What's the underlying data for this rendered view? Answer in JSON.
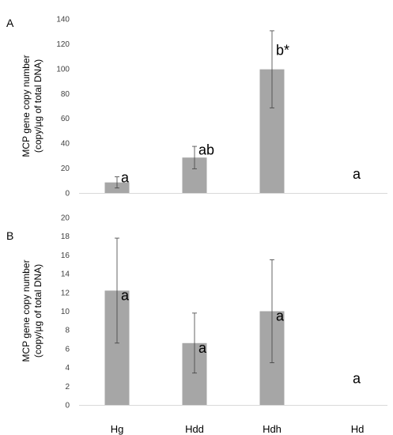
{
  "chart_data": [
    {
      "type": "bar",
      "panel_label": "A",
      "categories": [
        "Hg",
        "Hdd",
        "Hdh",
        "Hd"
      ],
      "values": [
        8.5,
        28.5,
        99.5,
        0
      ],
      "error": [
        4.5,
        9,
        31,
        0
      ],
      "significance": [
        "a",
        "ab",
        "b*",
        "a"
      ],
      "ylabel_lines": [
        "MCP gene copy number",
        "(copy/µg of total DNA)"
      ],
      "ylim": [
        0,
        140
      ],
      "yticks": [
        0,
        20,
        40,
        60,
        80,
        100,
        120,
        140
      ],
      "bar_color": "#a6a6a6",
      "grid": false
    },
    {
      "type": "bar",
      "panel_label": "B",
      "categories": [
        "Hg",
        "Hdd",
        "Hdh",
        "Hd"
      ],
      "values": [
        12.2,
        6.6,
        10,
        0
      ],
      "error": [
        5.6,
        3.2,
        5.5,
        0
      ],
      "significance": [
        "a",
        "a",
        "a",
        "a"
      ],
      "ylabel_lines": [
        "MCP gene copy number",
        "(copy/µg of total DNA)"
      ],
      "ylim": [
        0,
        20
      ],
      "yticks": [
        0,
        2,
        4,
        6,
        8,
        10,
        12,
        14,
        16,
        18,
        20
      ],
      "bar_color": "#a6a6a6",
      "grid": false
    }
  ]
}
